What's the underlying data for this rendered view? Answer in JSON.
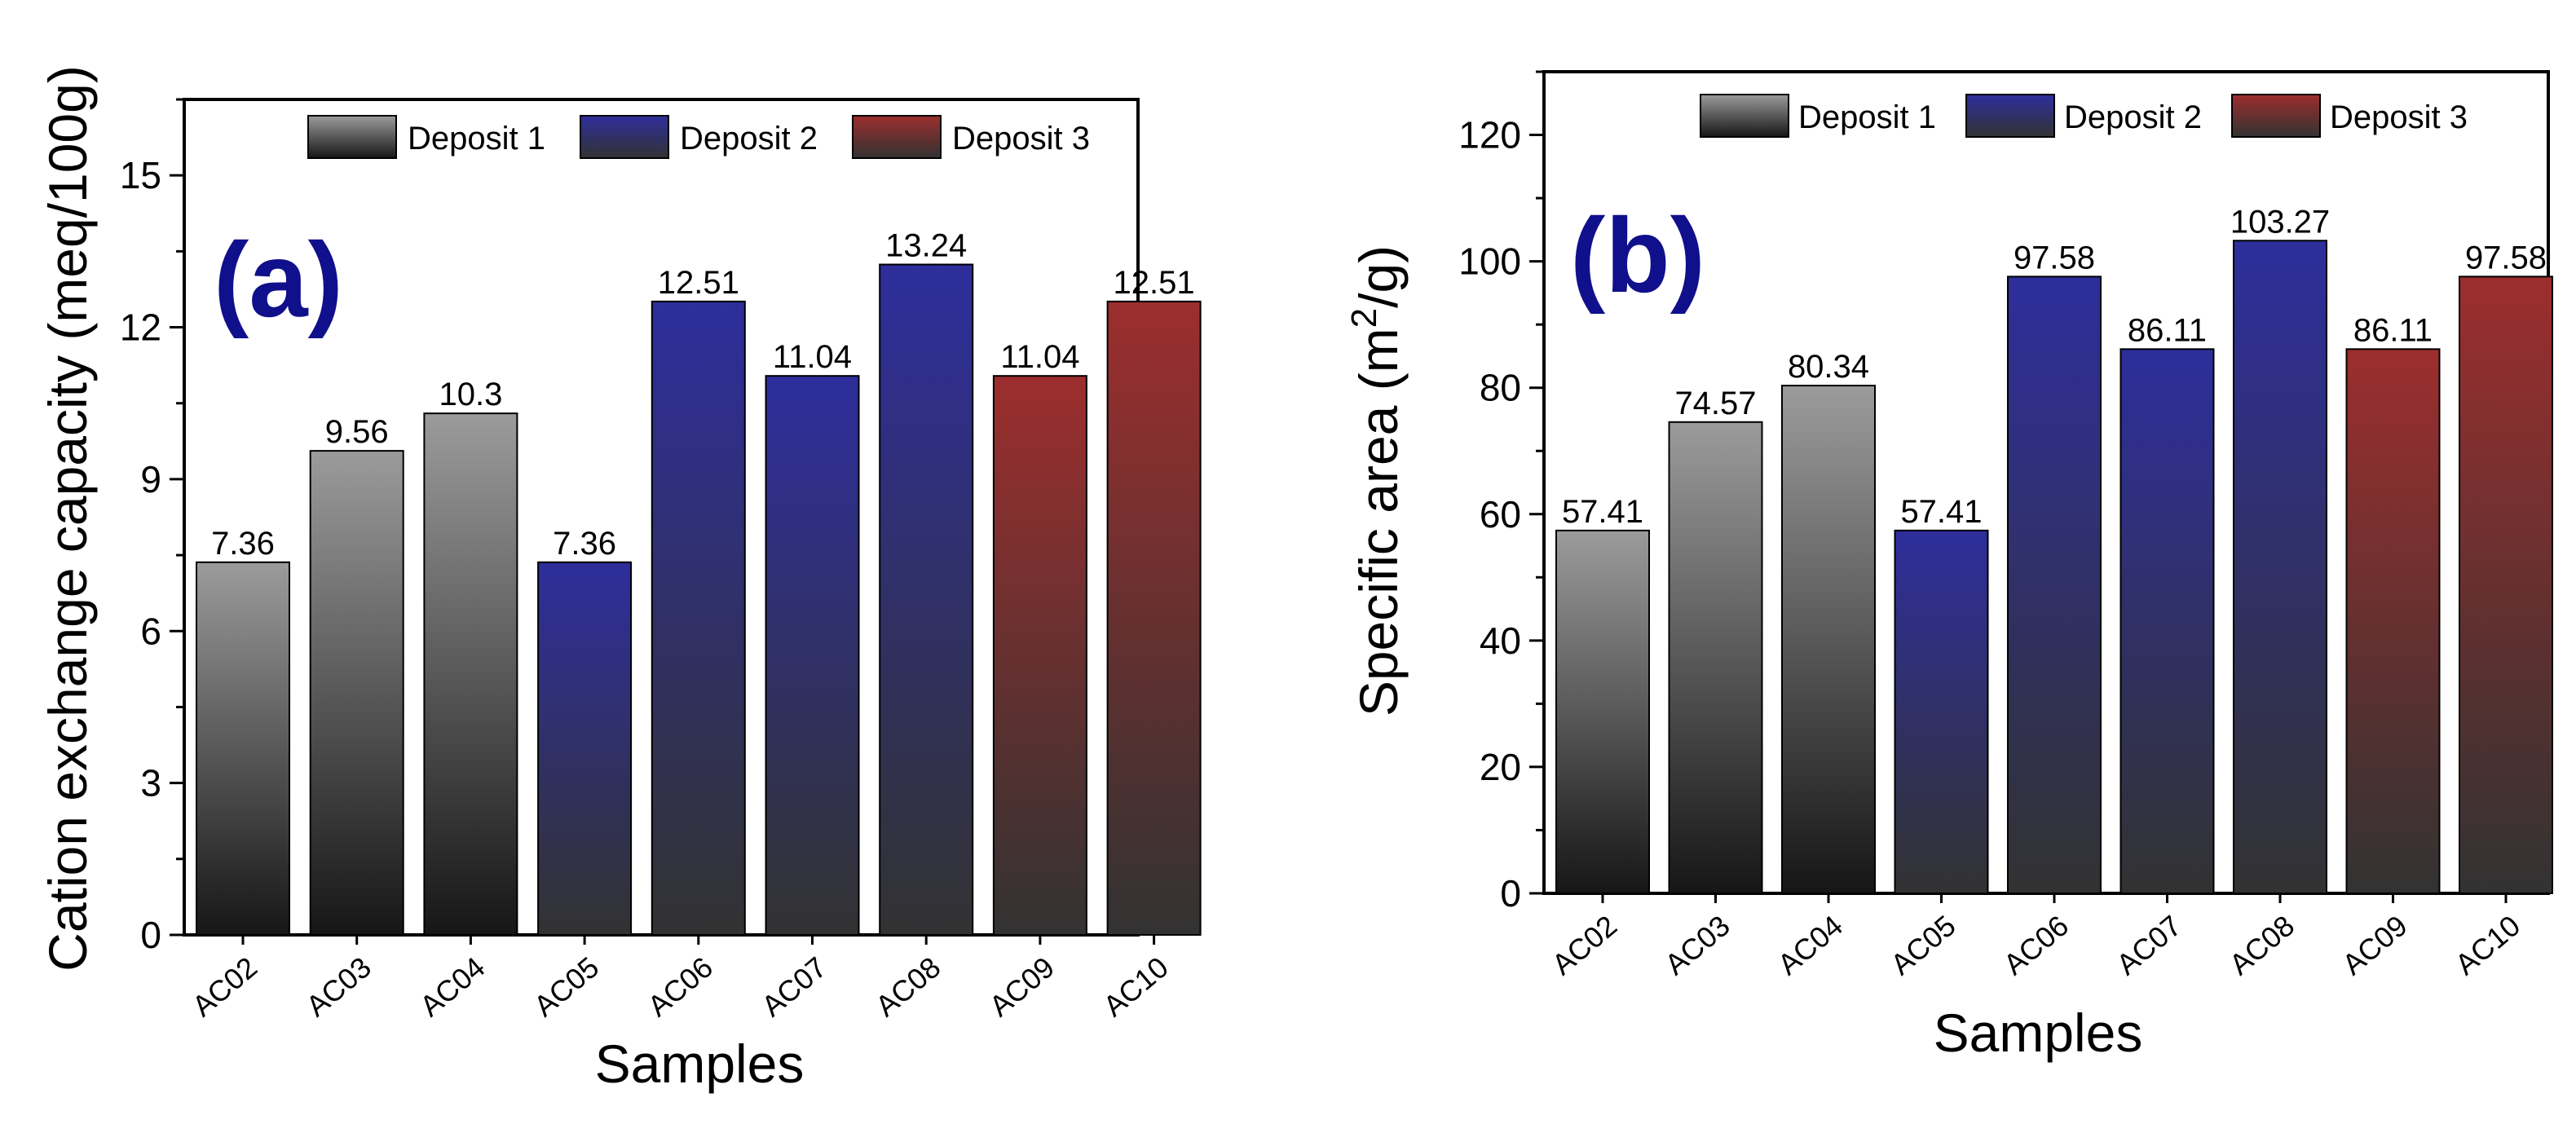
{
  "chart_data": [
    {
      "type": "bar",
      "panel": "(a)",
      "categories": [
        "AC02",
        "AC03",
        "AC04",
        "AC05",
        "AC06",
        "AC07",
        "AC08",
        "AC09",
        "AC10"
      ],
      "values": [
        7.36,
        9.56,
        10.3,
        7.36,
        12.51,
        11.04,
        13.24,
        11.04,
        12.51
      ],
      "value_labels": [
        "7.36",
        "9.56",
        "10.3",
        "7.36",
        "12.51",
        "11.04",
        "13.24",
        "11.04",
        "12.51"
      ],
      "groups": [
        "Deposit 1",
        "Deposit 1",
        "Deposit 1",
        "Deposit 2",
        "Deposit 2",
        "Deposit 2",
        "Deposit 2",
        "Deposit 3",
        "Deposit 3"
      ],
      "xlabel": "Samples",
      "ylabel": "Cation exchange capacity (meq/100g)",
      "ylim": [
        0,
        16.5
      ],
      "yticks": [
        0,
        3,
        6,
        9,
        12,
        15
      ],
      "ytick_labels": [
        "0",
        "3",
        "6",
        "9",
        "12",
        "15"
      ],
      "legend": [
        "Deposit 1",
        "Deposit 2",
        "Deposit 3"
      ],
      "legend_position": "top"
    },
    {
      "type": "bar",
      "panel": "(b)",
      "categories": [
        "AC02",
        "AC03",
        "AC04",
        "AC05",
        "AC06",
        "AC07",
        "AC08",
        "AC09",
        "AC10"
      ],
      "values": [
        57.41,
        74.57,
        80.34,
        57.41,
        97.58,
        86.11,
        103.27,
        86.11,
        97.58
      ],
      "value_labels": [
        "57.41",
        "74.57",
        "80.34",
        "57.41",
        "97.58",
        "86.11",
        "103.27",
        "86.11",
        "97.58"
      ],
      "groups": [
        "Deposit 1",
        "Deposit 1",
        "Deposit 1",
        "Deposit 2",
        "Deposit 2",
        "Deposit 2",
        "Deposit 2",
        "Deposit 3",
        "Deposit 3"
      ],
      "xlabel": "Samples",
      "ylabel": "Specific area (m²/g)",
      "ylabel_parts": [
        "Specific area (m",
        "2",
        "/g)"
      ],
      "ylim": [
        0,
        130
      ],
      "yticks": [
        0,
        20,
        40,
        60,
        80,
        100,
        120
      ],
      "ytick_labels": [
        "0",
        "20",
        "40",
        "60",
        "80",
        "100",
        "120"
      ],
      "legend": [
        "Deposit 1",
        "Deposit 2",
        "Deposit 3"
      ],
      "legend_position": "top"
    }
  ],
  "colors": {
    "deposit1_top": "#9b9b9b",
    "deposit1_bottom": "#161616",
    "deposit2_top": "#2e2e9c",
    "deposit2_bottom": "#323232",
    "deposit3_top": "#9c2e2e",
    "deposit3_bottom": "#323232",
    "panel_label": "#10108c"
  }
}
